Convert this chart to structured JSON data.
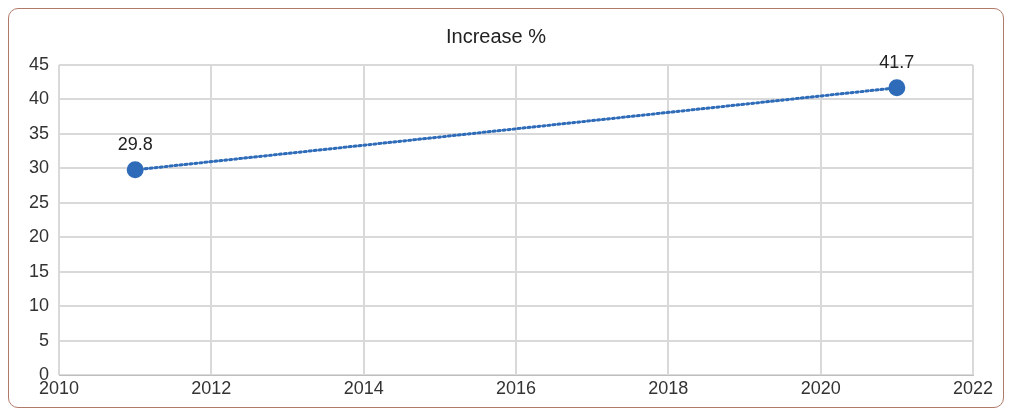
{
  "chart_data": {
    "type": "line",
    "title": "Increase %",
    "x": [
      2011,
      2021
    ],
    "series": [
      {
        "color": "#2e6bb8",
        "values": [
          29.8,
          41.7
        ]
      }
    ],
    "xlim": [
      2010,
      2022
    ],
    "xticks": [
      2010,
      2012,
      2014,
      2016,
      2018,
      2020,
      2022
    ],
    "ylim": [
      0,
      45
    ],
    "yticks": [
      0,
      5,
      10,
      15,
      20,
      25,
      30,
      35,
      40,
      45
    ],
    "grid": true,
    "legend": false,
    "marker": "circle",
    "line_style": "dotted",
    "data_labels": true
  }
}
